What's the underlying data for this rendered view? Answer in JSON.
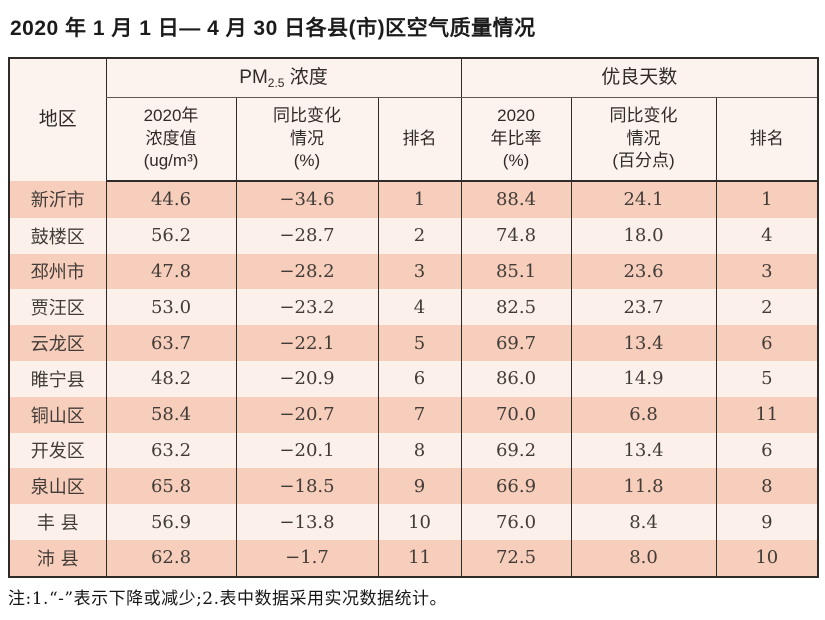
{
  "page": {
    "title": "2020 年 1 月 1 日— 4 月 30 日各县(市)区空气质量情况",
    "note": "注:1.“-”表示下降或减少;2.表中数据采用实况数据统计。"
  },
  "colors": {
    "row_odd": "#f7cdbb",
    "row_even": "#fcf1ea",
    "header_bg": "#fdf3ee",
    "border": "#2e2b29",
    "text": "#413c38"
  },
  "table": {
    "region_header": "地区",
    "pm_group": {
      "prefix": "PM",
      "sub": "2.5",
      "suffix": " 浓度"
    },
    "good_group": "优良天数",
    "subheaders": [
      [
        "2020年",
        "浓度值",
        "(ug/m³)"
      ],
      [
        "同比变化",
        "情况",
        "(%)"
      ],
      [
        "排名"
      ],
      [
        "2020",
        "年比率",
        "(%)"
      ],
      [
        "同比变化",
        "情况",
        "(百分点)"
      ],
      [
        "排名"
      ]
    ],
    "rows": [
      [
        "新沂市",
        "44.6",
        "−34.6",
        "1",
        "88.4",
        "24.1",
        "1"
      ],
      [
        "鼓楼区",
        "56.2",
        "−28.7",
        "2",
        "74.8",
        "18.0",
        "4"
      ],
      [
        "邳州市",
        "47.8",
        "−28.2",
        "3",
        "85.1",
        "23.6",
        "3"
      ],
      [
        "贾汪区",
        "53.0",
        "−23.2",
        "4",
        "82.5",
        "23.7",
        "2"
      ],
      [
        "云龙区",
        "63.7",
        "−22.1",
        "5",
        "69.7",
        "13.4",
        "6"
      ],
      [
        "睢宁县",
        "48.2",
        "−20.9",
        "6",
        "86.0",
        "14.9",
        "5"
      ],
      [
        "铜山区",
        "58.4",
        "−20.7",
        "7",
        "70.0",
        "6.8",
        "11"
      ],
      [
        "开发区",
        "63.2",
        "−20.1",
        "8",
        "69.2",
        "13.4",
        "6"
      ],
      [
        "泉山区",
        "65.8",
        "−18.5",
        "9",
        "66.9",
        "11.8",
        "8"
      ],
      [
        "丰 县",
        "56.9",
        "−13.8",
        "10",
        "76.0",
        "8.4",
        "9"
      ],
      [
        "沛 县",
        "62.8",
        "−1.7",
        "11",
        "72.5",
        "8.0",
        "10"
      ]
    ]
  }
}
